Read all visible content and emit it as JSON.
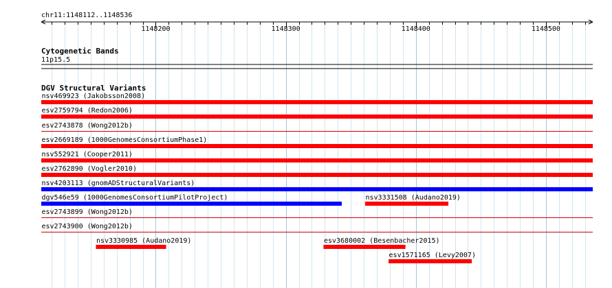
{
  "ruler": {
    "position_label": "chr11:1148112..1148536",
    "start": 1148112,
    "end": 1148536,
    "ticks": [
      {
        "value": 1148200,
        "label": "1148200"
      },
      {
        "value": 1148300,
        "label": "1148300"
      },
      {
        "value": 1148400,
        "label": "1148400"
      },
      {
        "value": 1148500,
        "label": "1148500"
      }
    ]
  },
  "cytoband_track": {
    "title": "Cytogenetic Bands",
    "band_label": "11p15.5"
  },
  "dgv_track": {
    "title": "DGV Structural Variants",
    "colors": {
      "loss": "#ff0000",
      "gain": "#0000ff",
      "thin": "#cc0000"
    },
    "features": [
      {
        "label": "nsv469923 (Jakobsson2008)",
        "start": 1148112,
        "end": 1148536,
        "type": "loss",
        "style": "thick"
      },
      {
        "label": "esv2759794 (Redon2006)",
        "start": 1148112,
        "end": 1148536,
        "type": "loss",
        "style": "thick"
      },
      {
        "label": "esv2743878 (Wong2012b)",
        "start": 1148112,
        "end": 1148536,
        "type": "loss",
        "style": "thin"
      },
      {
        "label": "esv2669189 (1000GenomesConsortiumPhase1)",
        "start": 1148112,
        "end": 1148536,
        "type": "loss",
        "style": "thick"
      },
      {
        "label": "nsv552921 (Cooper2011)",
        "start": 1148112,
        "end": 1148536,
        "type": "loss",
        "style": "thick"
      },
      {
        "label": "esv2762890 (Vogler2010)",
        "start": 1148112,
        "end": 1148536,
        "type": "loss",
        "style": "thick"
      },
      {
        "label": "nsv4203113 (gnomADStructuralVariants)",
        "start": 1148112,
        "end": 1148536,
        "type": "gain",
        "style": "thick"
      },
      {
        "label": "dgv546e59 (1000GenomesConsortiumPilotProject)",
        "start": 1148112,
        "end": 1148343,
        "type": "gain",
        "style": "thick"
      },
      {
        "label": "nsv3331508 (Audano2019)",
        "start": 1148361,
        "end": 1148425,
        "type": "loss",
        "style": "thick"
      },
      {
        "label": "esv2743899 (Wong2012b)",
        "start": 1148112,
        "end": 1148536,
        "type": "loss",
        "style": "thin"
      },
      {
        "label": "esv2743900 (Wong2012b)",
        "start": 1148112,
        "end": 1148536,
        "type": "loss",
        "style": "thin"
      },
      {
        "label": "nsv3330985 (Audano2019)",
        "start": 1148154,
        "end": 1148208,
        "type": "loss",
        "style": "thick"
      },
      {
        "label": "esv3680002 (Besenbacher2015)",
        "start": 1148329,
        "end": 1148392,
        "type": "loss",
        "style": "thick"
      },
      {
        "label": "esv1571165 (Levy2007)",
        "start": 1148379,
        "end": 1148443,
        "type": "loss",
        "style": "thick"
      }
    ]
  }
}
